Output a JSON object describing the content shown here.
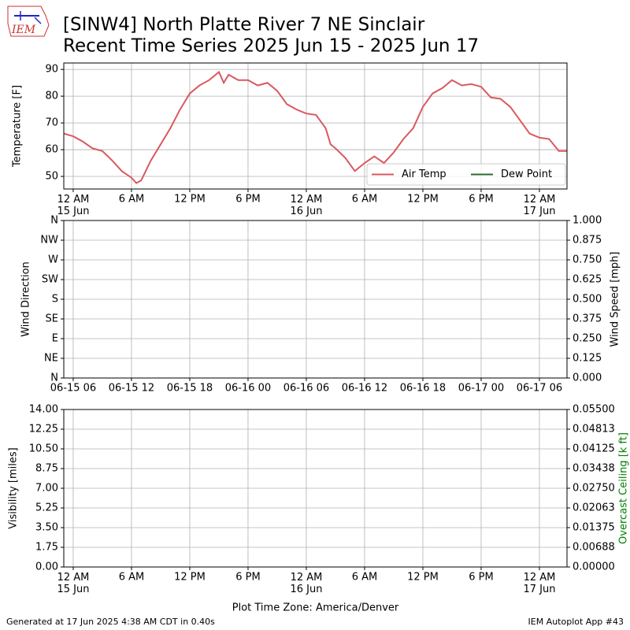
{
  "header": {
    "title": [
      "[SINW4] North Platte River 7 NE Sinclair",
      "Recent Time Series 2025 Jun 15 - 2025 Jun 17"
    ],
    "logo_text": "IEM"
  },
  "footer": {
    "left": "Generated at 17 Jun 2025 4:38 AM CDT in 0.40s",
    "right": "IEM Autoplot App #43"
  },
  "chart_data": [
    {
      "type": "line",
      "ylabel": "Temperature [F]",
      "x": [
        -0.97,
        0,
        1,
        2,
        3,
        4,
        5,
        6,
        6.5,
        7,
        8,
        9,
        10,
        11,
        12,
        13,
        14,
        15,
        15.5,
        16,
        17,
        18,
        19,
        20,
        21,
        22,
        23,
        24,
        25,
        26,
        26.5,
        27,
        28,
        29,
        30,
        31,
        32,
        33,
        34,
        35,
        36,
        37,
        38,
        39,
        40,
        41,
        42,
        43,
        44,
        45,
        46,
        47,
        48,
        49,
        50,
        50.84
      ],
      "series": [
        {
          "name": "Air Temp",
          "color": "#d9595f",
          "values": [
            66,
            65,
            63,
            60.5,
            59.5,
            56,
            52,
            49.5,
            47.5,
            48.5,
            56,
            62,
            68,
            75,
            81,
            84,
            86,
            89,
            85,
            88,
            86,
            86,
            84,
            85,
            82,
            77,
            75,
            73.5,
            73,
            68,
            62,
            60.5,
            57,
            52,
            55,
            57.5,
            55,
            59,
            64,
            68,
            76,
            81,
            83,
            86,
            84,
            84.5,
            83.5,
            79.5,
            79,
            76,
            71,
            66,
            64.5,
            64,
            59.5,
            59.5
          ]
        },
        {
          "name": "Dew Point",
          "color": "#2e6b2e",
          "values": [
            null,
            null,
            null,
            null,
            null,
            null,
            null,
            null,
            null,
            null,
            null,
            null,
            null,
            null,
            null,
            null,
            null,
            null,
            null,
            null,
            null,
            null,
            null,
            null,
            null,
            null,
            null,
            null,
            null,
            null,
            null,
            null,
            null,
            null,
            null,
            null,
            null,
            null,
            null,
            null,
            null,
            null,
            null,
            null,
            null,
            null,
            null,
            null,
            null,
            null,
            null,
            null,
            null,
            null,
            null,
            null
          ]
        }
      ],
      "xlim": [
        -0.97,
        50.84
      ],
      "xticks": [
        {
          "value": 0,
          "label": "12 AM\n15 Jun"
        },
        {
          "value": 6,
          "label": "6 AM"
        },
        {
          "value": 12,
          "label": "12 PM"
        },
        {
          "value": 18,
          "label": "6 PM"
        },
        {
          "value": 24,
          "label": "12 AM\n16 Jun"
        },
        {
          "value": 30,
          "label": "6 AM"
        },
        {
          "value": 36,
          "label": "12 PM"
        },
        {
          "value": 42,
          "label": "6 PM"
        },
        {
          "value": 48,
          "label": "12 AM\n17 Jun"
        }
      ],
      "ylim": [
        45.3,
        92.4
      ],
      "yticks": [
        50,
        60,
        70,
        80,
        90
      ],
      "grid": true,
      "legend": "lower right"
    },
    {
      "type": "line",
      "ylabel": "Wind Direction",
      "y2label": "Wind Speed [mph]",
      "xlim": [
        -0.97,
        50.84
      ],
      "xticks": [
        {
          "value": 0,
          "label": "06-15 06"
        },
        {
          "value": 6,
          "label": "06-15 12"
        },
        {
          "value": 12,
          "label": "06-15 18"
        },
        {
          "value": 18,
          "label": "06-16 00"
        },
        {
          "value": 24,
          "label": "06-16 06"
        },
        {
          "value": 30,
          "label": "06-16 12"
        },
        {
          "value": 36,
          "label": "06-16 18"
        },
        {
          "value": 42,
          "label": "06-17 00"
        },
        {
          "value": 48,
          "label": "06-17 06"
        }
      ],
      "ylim": [
        0,
        360
      ],
      "yticks": [
        {
          "value": 0,
          "label": "N"
        },
        {
          "value": 45,
          "label": "NE"
        },
        {
          "value": 90,
          "label": "E"
        },
        {
          "value": 135,
          "label": "SE"
        },
        {
          "value": 180,
          "label": "S"
        },
        {
          "value": 225,
          "label": "SW"
        },
        {
          "value": 270,
          "label": "W"
        },
        {
          "value": 315,
          "label": "NW"
        },
        {
          "value": 360,
          "label": "N"
        }
      ],
      "y2lim": [
        0,
        1
      ],
      "y2ticks": [
        {
          "value": 0,
          "label": "0.000"
        },
        {
          "value": 0.125,
          "label": "0.125"
        },
        {
          "value": 0.25,
          "label": "0.250"
        },
        {
          "value": 0.375,
          "label": "0.375"
        },
        {
          "value": 0.5,
          "label": "0.500"
        },
        {
          "value": 0.625,
          "label": "0.625"
        },
        {
          "value": 0.75,
          "label": "0.750"
        },
        {
          "value": 0.875,
          "label": "0.875"
        },
        {
          "value": 1,
          "label": "1.000"
        }
      ],
      "grid": true
    },
    {
      "type": "line",
      "ylabel": "Visibility [miles]",
      "y2label": "Overcast Ceiling [k ft]",
      "y2label_color": "#008000",
      "xlabel": "Plot Time Zone: America/Denver",
      "xlim": [
        -0.97,
        50.84
      ],
      "xticks": [
        {
          "value": 0,
          "label": "12 AM\n15 Jun"
        },
        {
          "value": 6,
          "label": "6 AM"
        },
        {
          "value": 12,
          "label": "12 PM"
        },
        {
          "value": 18,
          "label": "6 PM"
        },
        {
          "value": 24,
          "label": "12 AM\n16 Jun"
        },
        {
          "value": 30,
          "label": "6 AM"
        },
        {
          "value": 36,
          "label": "12 PM"
        },
        {
          "value": 42,
          "label": "6 PM"
        },
        {
          "value": 48,
          "label": "12 AM\n17 Jun"
        }
      ],
      "ylim": [
        0,
        14
      ],
      "yticks": [
        {
          "value": 0,
          "label": "0.00"
        },
        {
          "value": 1.75,
          "label": "1.75"
        },
        {
          "value": 3.5,
          "label": "3.50"
        },
        {
          "value": 5.25,
          "label": "5.25"
        },
        {
          "value": 7,
          "label": "7.00"
        },
        {
          "value": 8.75,
          "label": "8.75"
        },
        {
          "value": 10.5,
          "label": "10.50"
        },
        {
          "value": 12.25,
          "label": "12.25"
        },
        {
          "value": 14,
          "label": "14.00"
        }
      ],
      "y2lim": [
        0,
        0.055
      ],
      "y2ticks": [
        {
          "value": 0,
          "label": "0.00000"
        },
        {
          "value": 0.006875,
          "label": "0.00688"
        },
        {
          "value": 0.01375,
          "label": "0.01375"
        },
        {
          "value": 0.020625,
          "label": "0.02063"
        },
        {
          "value": 0.0275,
          "label": "0.02750"
        },
        {
          "value": 0.034375,
          "label": "0.03438"
        },
        {
          "value": 0.04125,
          "label": "0.04125"
        },
        {
          "value": 0.048125,
          "label": "0.04813"
        },
        {
          "value": 0.055,
          "label": "0.05500"
        }
      ],
      "grid": true
    }
  ]
}
